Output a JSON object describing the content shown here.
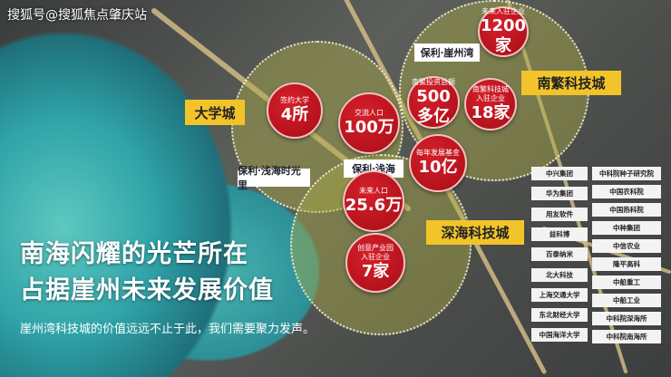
{
  "watermark": "搜狐号@搜狐焦点肇庆站",
  "zones": {
    "university": "大学城",
    "nanfan": "南繁科技城",
    "deepsea": "深海科技城"
  },
  "logos": [
    "保利·崖州湾",
    "保利·浅海",
    "保利·浅海时光里"
  ],
  "stats": [
    {
      "label": "签约大学",
      "value": "4所"
    },
    {
      "label": "交流人口",
      "value": "100万"
    },
    {
      "label": "南繁投资总额",
      "value": "500多亿"
    },
    {
      "label": "南繁科技城入驻企业",
      "value": "18家"
    },
    {
      "label": "未来入驻企业",
      "value": "1200家"
    },
    {
      "label": "每年发展基金",
      "value": "10亿"
    },
    {
      "label": "未来人口",
      "value": "25.6万"
    },
    {
      "label": "创意产业园入驻企业",
      "value": "7家"
    }
  ],
  "companies_left": [
    "中兴集团",
    "华为集团",
    "用友软件",
    "益科博",
    "百泰纳米",
    "北大科技",
    "上海交通大学",
    "东北财经大学",
    "中国海洋大学"
  ],
  "companies_right": [
    "中科院种子研究院",
    "中国农科院",
    "中国热科院",
    "中种集团",
    "中信农业",
    "隆平高科",
    "中船重工",
    "中船工业",
    "中科院深海所",
    "中科院南海所"
  ],
  "headline": [
    "南海闪耀的光芒所在",
    "占据崖州未来发展价值"
  ],
  "subtitle": "崖州湾科技城的价值远远不止于此，我们需要聚力发声。",
  "colors": {
    "stat_circle": "#b8111b",
    "zone_tag": "#f2c42a"
  }
}
